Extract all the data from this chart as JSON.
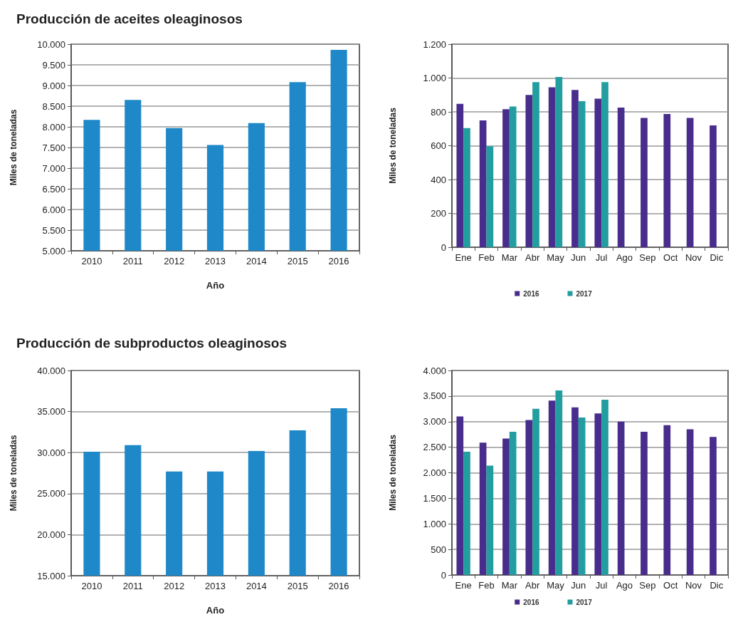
{
  "chart_data": [
    {
      "type": "bar",
      "title": "Producción de aceites oleaginosos",
      "xlabel": "Año",
      "ylabel": "Miles de toneladas",
      "categories": [
        "2010",
        "2011",
        "2012",
        "2013",
        "2014",
        "2015",
        "2016"
      ],
      "values": [
        8170,
        8650,
        7970,
        7560,
        8090,
        9080,
        9860
      ],
      "color": "#1e88c8",
      "ylim": [
        5000,
        10000
      ],
      "yticks": [
        {
          "value": 5000,
          "label": "5.000"
        },
        {
          "value": 5500,
          "label": "5.500"
        },
        {
          "value": 6000,
          "label": "6.000"
        },
        {
          "value": 6500,
          "label": "6.500"
        },
        {
          "value": 7000,
          "label": "7.000"
        },
        {
          "value": 7500,
          "label": "7.500"
        },
        {
          "value": 8000,
          "label": "8.000"
        },
        {
          "value": 8500,
          "label": "8.500"
        },
        {
          "value": 9000,
          "label": "9.000"
        },
        {
          "value": 9500,
          "label": "9.500"
        },
        {
          "value": 10000,
          "label": "10.000"
        }
      ],
      "grid": "y",
      "legend": false
    },
    {
      "type": "bar",
      "ylabel": "Miles de toneladas",
      "categories": [
        "Ene",
        "Feb",
        "Mar",
        "Abr",
        "May",
        "Jun",
        "Jul",
        "Ago",
        "Sep",
        "Oct",
        "Nov",
        "Dic"
      ],
      "series": [
        {
          "name": "2016",
          "color": "#482d8c",
          "values": [
            847,
            749,
            816,
            900,
            945,
            930,
            878,
            825,
            764,
            787,
            764,
            720
          ]
        },
        {
          "name": "2017",
          "color": "#229ea0",
          "values": [
            704,
            597,
            832,
            976,
            1006,
            863,
            976,
            null,
            null,
            null,
            null,
            null
          ]
        }
      ],
      "ylim": [
        0,
        1200
      ],
      "yticks": [
        0,
        200,
        400,
        600,
        800,
        {
          "value": 1000,
          "label": "1.000"
        },
        {
          "value": 1200,
          "label": "1.200"
        }
      ],
      "grid": "y",
      "legend": "bottom"
    },
    {
      "type": "bar",
      "title": "Producción de subproductos oleaginosos",
      "xlabel": "Año",
      "ylabel": "Miles de toneladas",
      "categories": [
        "2010",
        "2011",
        "2012",
        "2013",
        "2014",
        "2015",
        "2016"
      ],
      "values": [
        30100,
        30900,
        27700,
        27700,
        30200,
        32700,
        35400
      ],
      "color": "#1e88c8",
      "ylim": [
        15000,
        40000
      ],
      "yticks": [
        {
          "value": 15000,
          "label": "15.000"
        },
        {
          "value": 20000,
          "label": "20.000"
        },
        {
          "value": 25000,
          "label": "25.000"
        },
        {
          "value": 30000,
          "label": "30.000"
        },
        {
          "value": 35000,
          "label": "35.000"
        },
        {
          "value": 40000,
          "label": "40.000"
        }
      ],
      "grid": "y",
      "legend": false
    },
    {
      "type": "bar",
      "ylabel": "Miles de toneladas",
      "categories": [
        "Ene",
        "Feb",
        "Mar",
        "Abr",
        "May",
        "Jun",
        "Jul",
        "Ago",
        "Sep",
        "Oct",
        "Nov",
        "Dic"
      ],
      "series": [
        {
          "name": "2016",
          "color": "#482d8c",
          "values": [
            3100,
            2590,
            2670,
            3030,
            3410,
            3280,
            3160,
            3000,
            2800,
            2930,
            2850,
            2700
          ]
        },
        {
          "name": "2017",
          "color": "#229ea0",
          "values": [
            2410,
            2140,
            2800,
            3250,
            3610,
            3080,
            3430,
            null,
            null,
            null,
            null,
            null
          ]
        }
      ],
      "ylim": [
        0,
        4000
      ],
      "yticks": [
        0,
        500,
        {
          "value": 1000,
          "label": "1.000"
        },
        {
          "value": 1500,
          "label": "1.500"
        },
        {
          "value": 2000,
          "label": "2.000"
        },
        {
          "value": 2500,
          "label": "2.500"
        },
        {
          "value": 3000,
          "label": "3.000"
        },
        {
          "value": 3500,
          "label": "3.500"
        },
        {
          "value": 4000,
          "label": "4.000"
        }
      ],
      "grid": "y",
      "legend": "bottom"
    }
  ]
}
